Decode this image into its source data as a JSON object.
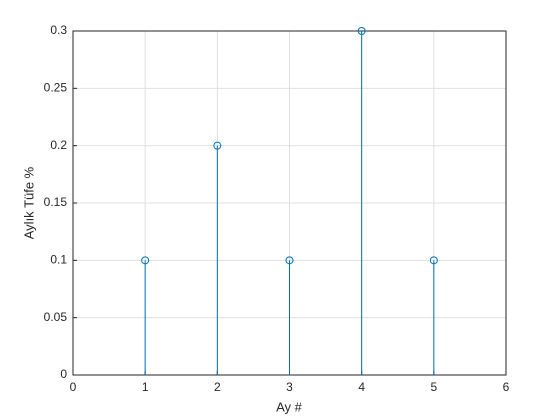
{
  "chart_data": {
    "type": "stem",
    "x": [
      1,
      2,
      3,
      4,
      5
    ],
    "values": [
      0.1,
      0.2,
      0.1,
      0.3,
      0.1
    ],
    "color": "#0072bd",
    "xlabel": "Ay #",
    "ylabel": "Aylık Tüfe %",
    "xlim": [
      0,
      6
    ],
    "xticks": [
      0,
      1,
      2,
      3,
      4,
      5,
      6
    ],
    "ylim": [
      0,
      0.3
    ],
    "yticks": [
      0,
      0.05,
      0.1,
      0.15,
      0.2,
      0.25,
      0.3
    ],
    "grid": true
  }
}
